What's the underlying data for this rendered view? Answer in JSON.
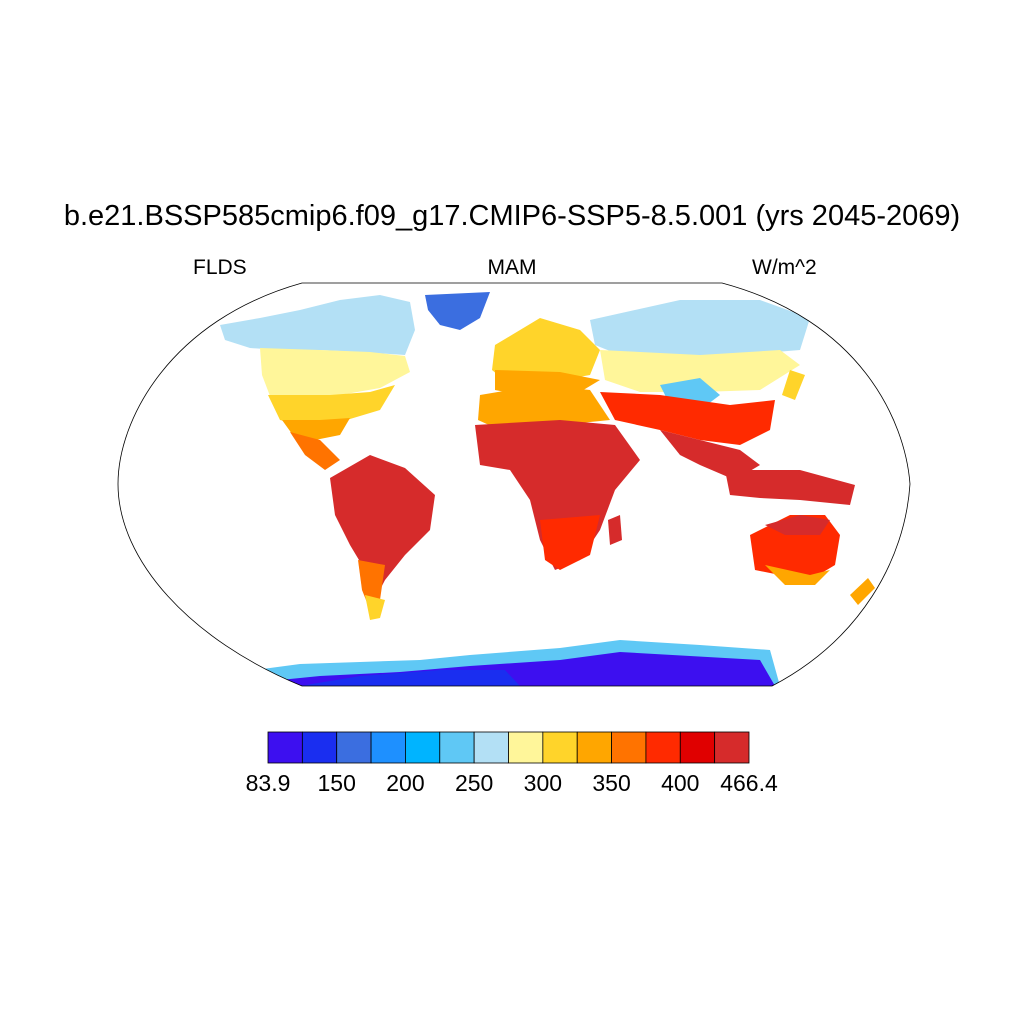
{
  "figure": {
    "title": "b.e21.BSSP585cmip6.f09_g17.CMIP6-SSP5-8.5.001 (yrs 2045-2069)",
    "left_label": "FLDS",
    "center_label": "MAM",
    "right_label": "W/m^2"
  },
  "colorbar": {
    "colors": [
      "#3d0ff0",
      "#1a2ef0",
      "#3b6ee0",
      "#1e90ff",
      "#00b4ff",
      "#5fc8f5",
      "#b3e0f5",
      "#fff69a",
      "#ffd42a",
      "#ffa600",
      "#ff7300",
      "#ff2a00",
      "#e00000",
      "#d62b2b"
    ],
    "tick_labels": [
      "83.9",
      "150",
      "200",
      "250",
      "300",
      "350",
      "400",
      "466.4"
    ]
  },
  "map": {
    "projection": "Robinson",
    "coastlines": true,
    "ocean_fill": "none"
  }
}
